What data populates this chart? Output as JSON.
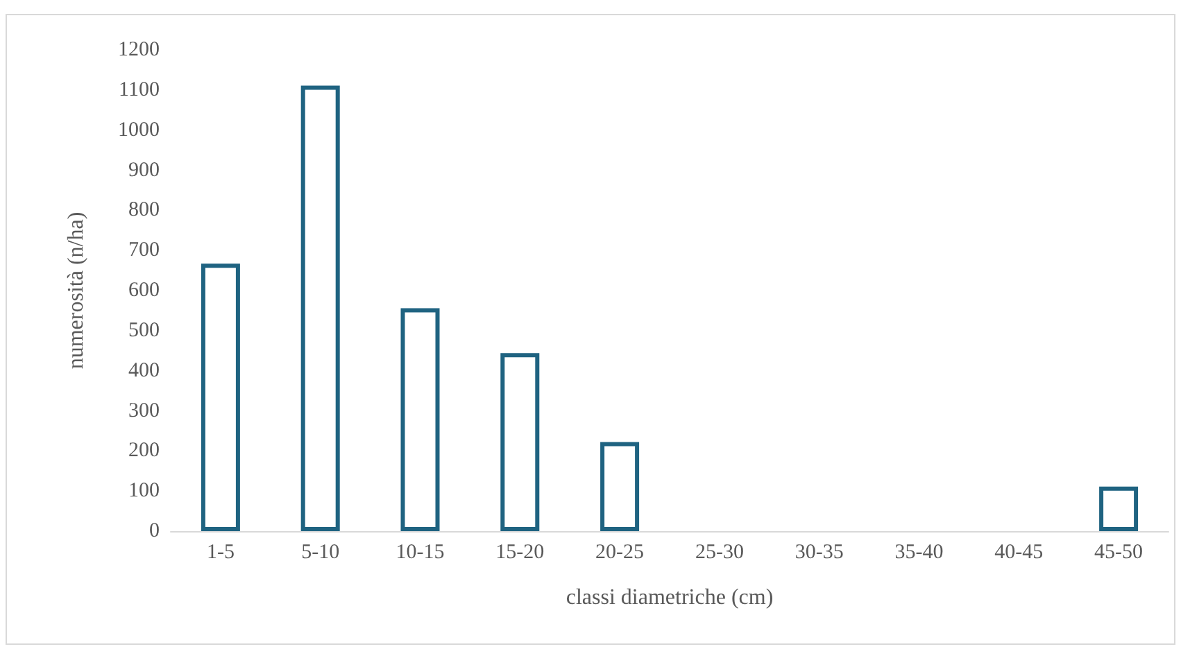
{
  "chart_data": {
    "type": "bar",
    "xlabel": "classi diametriche (cm)",
    "ylabel": "numerosità (n/ha)",
    "categories": [
      "1-5",
      "5-10",
      "10-15",
      "15-20",
      "20-25",
      "25-30",
      "30-35",
      "35-40",
      "40-45",
      "45-50"
    ],
    "values": [
      667,
      1111,
      556,
      444,
      222,
      0,
      0,
      0,
      0,
      111
    ],
    "color": "#1f6381",
    "ylim": [
      0,
      1200
    ],
    "yticks": [
      0,
      100,
      200,
      300,
      400,
      500,
      600,
      700,
      800,
      900,
      1000,
      1100,
      1200
    ],
    "grid": false
  }
}
